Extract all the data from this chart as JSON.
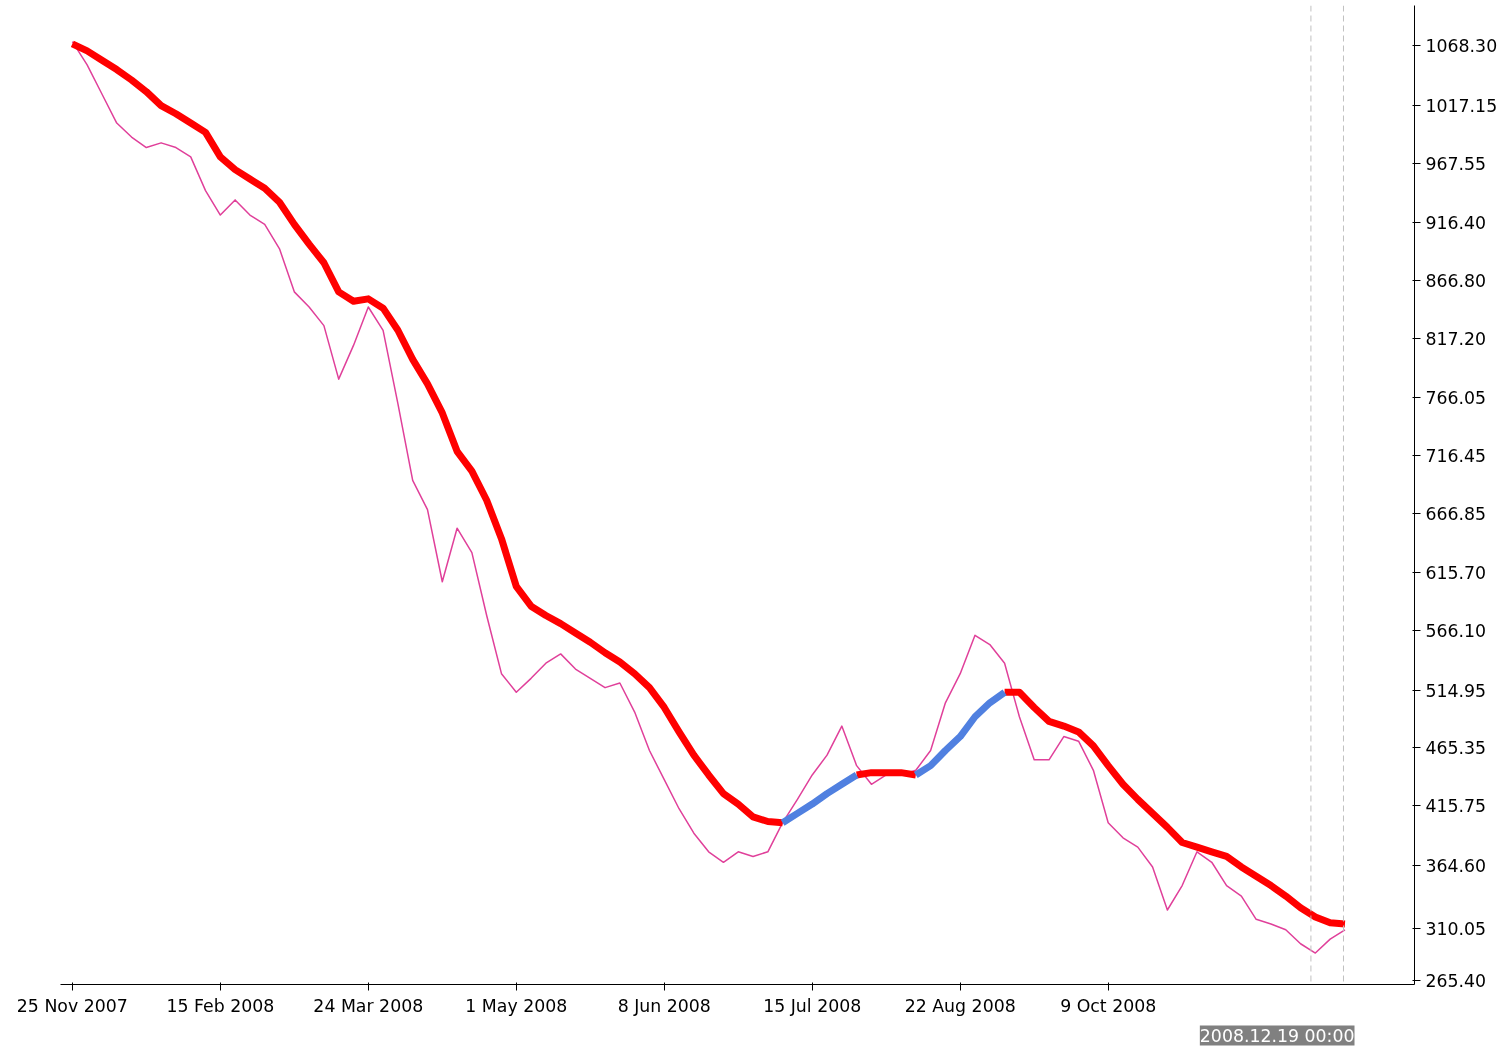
{
  "chart_data": {
    "type": "line",
    "categories": [
      "25 Nov 2007",
      null,
      null,
      null,
      null,
      null,
      null,
      null,
      null,
      null,
      "15 Feb 2008",
      null,
      null,
      null,
      null,
      null,
      null,
      null,
      null,
      null,
      "24 Mar 2008",
      null,
      null,
      null,
      null,
      null,
      null,
      null,
      null,
      null,
      "1 May 2008",
      null,
      null,
      null,
      null,
      null,
      null,
      null,
      null,
      null,
      "8 Jun 2008",
      null,
      null,
      null,
      null,
      null,
      null,
      null,
      null,
      null,
      "15 Jul 2008",
      null,
      null,
      null,
      null,
      null,
      null,
      null,
      null,
      null,
      "22 Aug 2008",
      null,
      null,
      null,
      null,
      null,
      null,
      null,
      null,
      null,
      "9 Oct 2008",
      null,
      null,
      null,
      null,
      null,
      null,
      null,
      null,
      null,
      null,
      null,
      null,
      null,
      null,
      null,
      null
    ],
    "series": [
      {
        "color": "#e0409a",
        "values": [
          1072,
          1052,
          1027,
          1002,
          990,
          981,
          985,
          981,
          973,
          944,
          923,
          936,
          923,
          915,
          894,
          857,
          844,
          828,
          782,
          811,
          844,
          824,
          761,
          695,
          670,
          608,
          654,
          633,
          579,
          529,
          513,
          525,
          538,
          546,
          533,
          525,
          517,
          521,
          496,
          463,
          438,
          413,
          392,
          376,
          367,
          376,
          372,
          376,
          401,
          421,
          442,
          459,
          484,
          450,
          434,
          442,
          442,
          446,
          463,
          504,
          529,
          562,
          554,
          538,
          492,
          455,
          455,
          475,
          471,
          446,
          401,
          388,
          380,
          363,
          326,
          347,
          376,
          367,
          347,
          338,
          318,
          314,
          309,
          297,
          289,
          301,
          309
        ]
      },
      {
        "color": "#ff0000",
        "values": [
          1070,
          1064,
          1056,
          1048,
          1039,
          1029,
          1017,
          1010,
          1002,
          994,
          973,
          962,
          954,
          946,
          934,
          915,
          898,
          882,
          857,
          849,
          851,
          843,
          824,
          799,
          778,
          753,
          720,
          703,
          678,
          645,
          604,
          587,
          579,
          572,
          564,
          556,
          547,
          539,
          529,
          517,
          500,
          479,
          459,
          442,
          426,
          417,
          406,
          402,
          401,
          null,
          null,
          null,
          null,
          442,
          444,
          444,
          444,
          442,
          null,
          null,
          null,
          null,
          null,
          513,
          513,
          500,
          488,
          484,
          479,
          467,
          450,
          434,
          421,
          409,
          397,
          384,
          380,
          376,
          372,
          363,
          355,
          347,
          338,
          328,
          320,
          315,
          314
        ]
      },
      {
        "color": "#5080e0",
        "values": [
          null,
          null,
          null,
          null,
          null,
          null,
          null,
          null,
          null,
          null,
          null,
          null,
          null,
          null,
          null,
          null,
          null,
          null,
          null,
          null,
          null,
          null,
          null,
          null,
          null,
          null,
          null,
          null,
          null,
          null,
          null,
          null,
          null,
          null,
          null,
          null,
          null,
          null,
          null,
          null,
          null,
          null,
          null,
          null,
          null,
          null,
          null,
          null,
          401,
          409,
          417,
          426,
          434,
          442,
          null,
          null,
          null,
          442,
          450,
          463,
          475,
          492,
          504,
          513,
          null,
          null,
          null,
          null,
          null,
          null,
          null,
          null,
          null,
          null,
          null,
          null,
          null,
          null,
          null,
          null,
          null,
          null,
          null,
          null,
          null,
          null,
          null
        ]
      }
    ],
    "ylim": [
      262,
      1103
    ],
    "yticks": [
      {
        "value": 1068.3,
        "label": "1068.30"
      },
      {
        "value": 1017.15,
        "label": "1017.15"
      },
      {
        "value": 967.55,
        "label": "967.55"
      },
      {
        "value": 916.4,
        "label": "916.40"
      },
      {
        "value": 866.8,
        "label": "866.80"
      },
      {
        "value": 817.2,
        "label": "817.20"
      },
      {
        "value": 766.05,
        "label": "766.05"
      },
      {
        "value": 716.45,
        "label": "716.45"
      },
      {
        "value": 666.85,
        "label": "666.85"
      },
      {
        "value": 615.7,
        "label": "615.70"
      },
      {
        "value": 566.1,
        "label": "566.10"
      },
      {
        "value": 514.95,
        "label": "514.95"
      },
      {
        "value": 465.35,
        "label": "465.35"
      },
      {
        "value": 415.75,
        "label": "415.75"
      },
      {
        "value": 364.6,
        "label": "364.60"
      },
      {
        "value": 310.05,
        "label": "310.05"
      },
      {
        "value": 265.4,
        "label": "265.40"
      }
    ],
    "annotations": [
      "2008.12.19 00:00"
    ],
    "marker": "none",
    "line_style": "solid"
  }
}
